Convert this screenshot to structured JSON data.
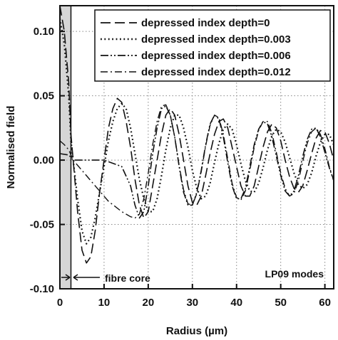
{
  "chart_data": {
    "type": "line",
    "xlabel": "Radius (µm)",
    "ylabel": "Normalised field",
    "xlim": [
      0,
      62
    ],
    "ylim": [
      -0.1,
      0.12
    ],
    "x_ticks": [
      0,
      10,
      20,
      30,
      40,
      50,
      60
    ],
    "x_tick_labels": [
      "0",
      "10",
      "20",
      "30",
      "40",
      "50",
      "60"
    ],
    "y_ticks": [
      -0.1,
      -0.05,
      0.0,
      0.05,
      0.1
    ],
    "y_tick_labels": [
      "-0.10",
      "-0.05",
      "0.00",
      "0.05",
      "0.10"
    ],
    "grid": true,
    "legend_position": "top-right",
    "annotations": [
      {
        "text": "fibre core"
      },
      {
        "text": "LP09 modes"
      }
    ],
    "series": [
      {
        "name": "depressed index depth=0",
        "line_style": "dashed",
        "x": [
          0,
          1,
          2,
          2.5,
          3,
          4,
          5,
          6,
          7,
          8,
          9,
          10,
          11,
          12,
          13,
          14,
          15,
          16,
          17,
          18,
          19,
          20,
          21,
          22,
          23,
          24,
          25,
          26,
          27,
          28,
          29,
          30,
          31,
          32,
          33,
          34,
          35,
          36,
          37,
          38,
          39,
          40,
          41,
          42,
          43,
          44,
          45,
          46,
          47,
          48,
          49,
          50,
          51,
          52,
          53,
          54,
          55,
          56,
          57,
          58,
          59,
          60,
          61,
          62
        ],
        "y": [
          0.12,
          0.1,
          0.06,
          0.02,
          0.0,
          -0.04,
          -0.07,
          -0.08,
          -0.075,
          -0.055,
          -0.025,
          0.0,
          0.025,
          0.04,
          0.048,
          0.045,
          0.03,
          0.01,
          -0.015,
          -0.035,
          -0.045,
          -0.04,
          -0.02,
          0.0,
          0.02,
          0.035,
          0.04,
          0.035,
          0.02,
          0.0,
          -0.02,
          -0.033,
          -0.035,
          -0.028,
          -0.012,
          0.005,
          0.02,
          0.03,
          0.032,
          0.025,
          0.01,
          -0.005,
          -0.02,
          -0.028,
          -0.028,
          -0.02,
          -0.005,
          0.01,
          0.022,
          0.028,
          0.025,
          0.015,
          0.0,
          -0.013,
          -0.022,
          -0.025,
          -0.02,
          -0.008,
          0.005,
          0.017,
          0.023,
          0.022,
          0.013,
          0.0
        ]
      },
      {
        "name": "depressed index depth=0.003",
        "line_style": "dotted",
        "x": [
          0,
          1,
          2,
          2.5,
          3,
          4,
          5,
          6,
          7,
          8,
          9,
          10,
          11,
          12,
          13,
          14,
          15,
          16,
          17,
          18,
          19,
          20,
          21,
          22,
          23,
          24,
          25,
          26,
          27,
          28,
          29,
          30,
          31,
          32,
          33,
          34,
          35,
          36,
          37,
          38,
          39,
          40,
          41,
          42,
          43,
          44,
          45,
          46,
          47,
          48,
          49,
          50,
          51,
          52,
          53,
          54,
          55,
          56,
          57,
          58,
          59,
          60,
          61,
          62
        ],
        "y": [
          0.11,
          0.09,
          0.05,
          0.015,
          0.0,
          -0.03,
          -0.055,
          -0.065,
          -0.06,
          -0.045,
          -0.025,
          -0.005,
          0.015,
          0.03,
          0.04,
          0.044,
          0.04,
          0.025,
          0.005,
          -0.015,
          -0.03,
          -0.04,
          -0.04,
          -0.03,
          -0.012,
          0.008,
          0.025,
          0.035,
          0.035,
          0.025,
          0.01,
          -0.008,
          -0.022,
          -0.03,
          -0.028,
          -0.018,
          -0.002,
          0.013,
          0.024,
          0.028,
          0.024,
          0.012,
          -0.003,
          -0.016,
          -0.024,
          -0.025,
          -0.018,
          -0.006,
          0.008,
          0.019,
          0.024,
          0.022,
          0.014,
          0.002,
          -0.01,
          -0.019,
          -0.022,
          -0.019,
          -0.01,
          0.003,
          0.014,
          0.02,
          0.02,
          0.012
        ]
      },
      {
        "name": "depressed index depth=0.006",
        "line_style": "dash-dot-dot",
        "x": [
          0,
          2,
          2.5,
          3,
          5,
          10,
          14,
          16,
          17,
          18,
          19,
          20,
          21,
          22,
          23,
          24,
          25,
          26,
          27,
          28,
          29,
          30,
          31,
          32,
          33,
          34,
          35,
          36,
          37,
          38,
          39,
          40,
          41,
          42,
          43,
          44,
          45,
          46,
          47,
          48,
          49,
          50,
          51,
          52,
          53,
          54,
          55,
          56,
          57,
          58,
          59,
          60,
          61,
          62
        ],
        "y": [
          0.005,
          0.004,
          0.002,
          0.0,
          0.0,
          0.0,
          -0.005,
          -0.02,
          -0.035,
          -0.045,
          -0.04,
          -0.02,
          0.005,
          0.025,
          0.04,
          0.042,
          0.035,
          0.018,
          -0.005,
          -0.025,
          -0.035,
          -0.035,
          -0.025,
          -0.008,
          0.012,
          0.028,
          0.035,
          0.032,
          0.018,
          -0.002,
          -0.02,
          -0.03,
          -0.03,
          -0.022,
          -0.005,
          0.012,
          0.024,
          0.03,
          0.028,
          0.018,
          0.003,
          -0.012,
          -0.024,
          -0.028,
          -0.024,
          -0.012,
          0.003,
          0.016,
          0.024,
          0.025,
          0.018,
          0.006,
          -0.006,
          -0.016
        ]
      },
      {
        "name": "depressed index depth=0.012",
        "line_style": "dash-dot",
        "x": [
          0,
          1,
          2,
          2.5,
          3,
          5,
          8,
          11,
          14,
          16,
          17,
          18,
          19,
          20,
          21,
          22,
          23,
          24,
          25,
          26,
          27,
          28,
          29,
          30,
          31,
          32,
          33,
          34,
          35,
          36,
          37,
          38,
          39,
          40,
          41,
          42,
          43,
          44,
          45,
          46,
          47,
          48,
          49,
          50,
          51,
          52,
          53,
          54,
          55,
          56,
          57,
          58,
          59,
          60,
          61,
          62
        ],
        "y": [
          0.015,
          0.012,
          0.008,
          0.004,
          0.0,
          -0.008,
          -0.02,
          -0.032,
          -0.04,
          -0.044,
          -0.045,
          -0.042,
          -0.03,
          -0.01,
          0.012,
          0.03,
          0.042,
          0.043,
          0.035,
          0.018,
          -0.004,
          -0.023,
          -0.034,
          -0.035,
          -0.026,
          -0.009,
          0.011,
          0.027,
          0.035,
          0.033,
          0.02,
          0.001,
          -0.018,
          -0.029,
          -0.031,
          -0.024,
          -0.008,
          0.01,
          0.023,
          0.03,
          0.03,
          0.021,
          0.006,
          -0.01,
          -0.022,
          -0.028,
          -0.026,
          -0.016,
          -0.001,
          0.013,
          0.022,
          0.025,
          0.02,
          0.009,
          -0.005,
          -0.016
        ]
      }
    ]
  }
}
